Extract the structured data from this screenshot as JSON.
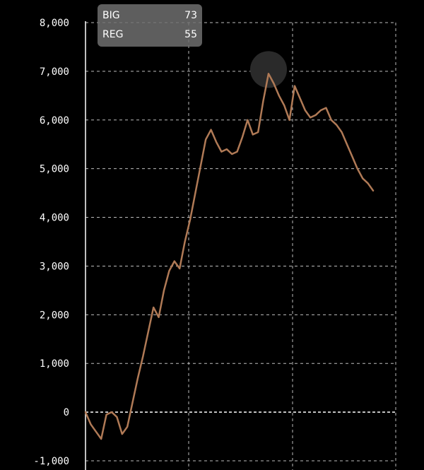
{
  "chart_data": {
    "type": "line",
    "title": "",
    "xlabel": "",
    "ylabel": "",
    "ylim": [
      -1000,
      8000
    ],
    "y_ticks": [
      8000,
      7000,
      6000,
      5000,
      4000,
      3000,
      2000,
      1000,
      0,
      -1000
    ],
    "y_tick_labels": [
      "8,000",
      "7,000",
      "6,000",
      "5,000",
      "4,000",
      "3,000",
      "2,000",
      "1,000",
      "0",
      "-1,000"
    ],
    "grid": true,
    "line_color": "#b07a56",
    "highlight_color": "#2a2a2a",
    "series": [
      {
        "values": [
          0,
          -250,
          -400,
          -550,
          -50,
          0,
          -100,
          -450,
          -300,
          200,
          700,
          1150,
          1650,
          2150,
          1950,
          2500,
          2900,
          3100,
          2950,
          3500,
          3950,
          4500,
          5050,
          5600,
          5800,
          5550,
          5350,
          5400,
          5300,
          5350,
          5650,
          6000,
          5700,
          5750,
          6400,
          6950,
          6750,
          6500,
          6300,
          6000,
          6700,
          6450,
          6200,
          6050,
          6100,
          6200,
          6250,
          6000,
          5900,
          5750,
          5500,
          5250,
          5000,
          4800,
          4700,
          4550
        ],
        "highlight_index": 35
      }
    ]
  },
  "legend": {
    "rows": [
      {
        "label": "BIG",
        "value": "73"
      },
      {
        "label": "REG",
        "value": "55"
      }
    ]
  }
}
